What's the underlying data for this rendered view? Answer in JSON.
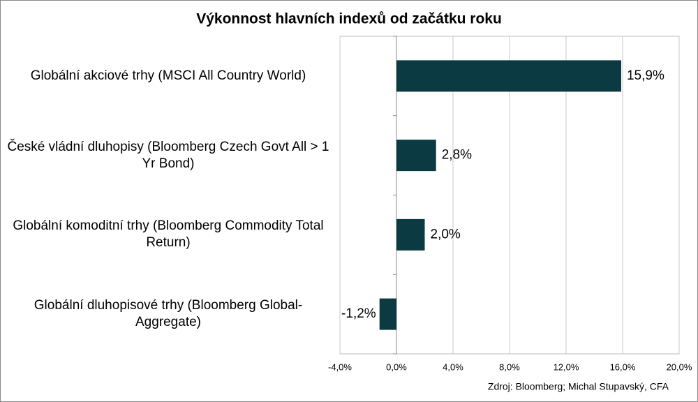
{
  "chart_data": {
    "type": "bar",
    "orientation": "horizontal",
    "title": "Výkonnost hlavních indexů od začátku roku",
    "categories": [
      "Globální akciové trhy (MSCI All Country World)",
      "České vládní dluhopisy (Bloomberg Czech Govt All > 1 Yr Bond)",
      "Globální komoditní trhy (Bloomberg Commodity Total Return)",
      "Globální dluhopisové trhy (Bloomberg Global-Aggregate)"
    ],
    "values": [
      15.9,
      2.8,
      2.0,
      -1.2
    ],
    "value_labels": [
      "15,9%",
      "2,8%",
      "2,0%",
      "-1,2%"
    ],
    "color": "#0b3a42",
    "xlim": [
      -4,
      20
    ],
    "xticks": [
      {
        "value": -4,
        "label": "-4,0%"
      },
      {
        "value": 0,
        "label": "0,0%"
      },
      {
        "value": 4,
        "label": "4,0%"
      },
      {
        "value": 8,
        "label": "8,0%"
      },
      {
        "value": 12,
        "label": "12,0%"
      },
      {
        "value": 16,
        "label": "16,0%"
      },
      {
        "value": 20,
        "label": "20,0%"
      }
    ],
    "grid": true,
    "source": "Zdroj: Bloomberg; Michal Stupavský, CFA"
  }
}
